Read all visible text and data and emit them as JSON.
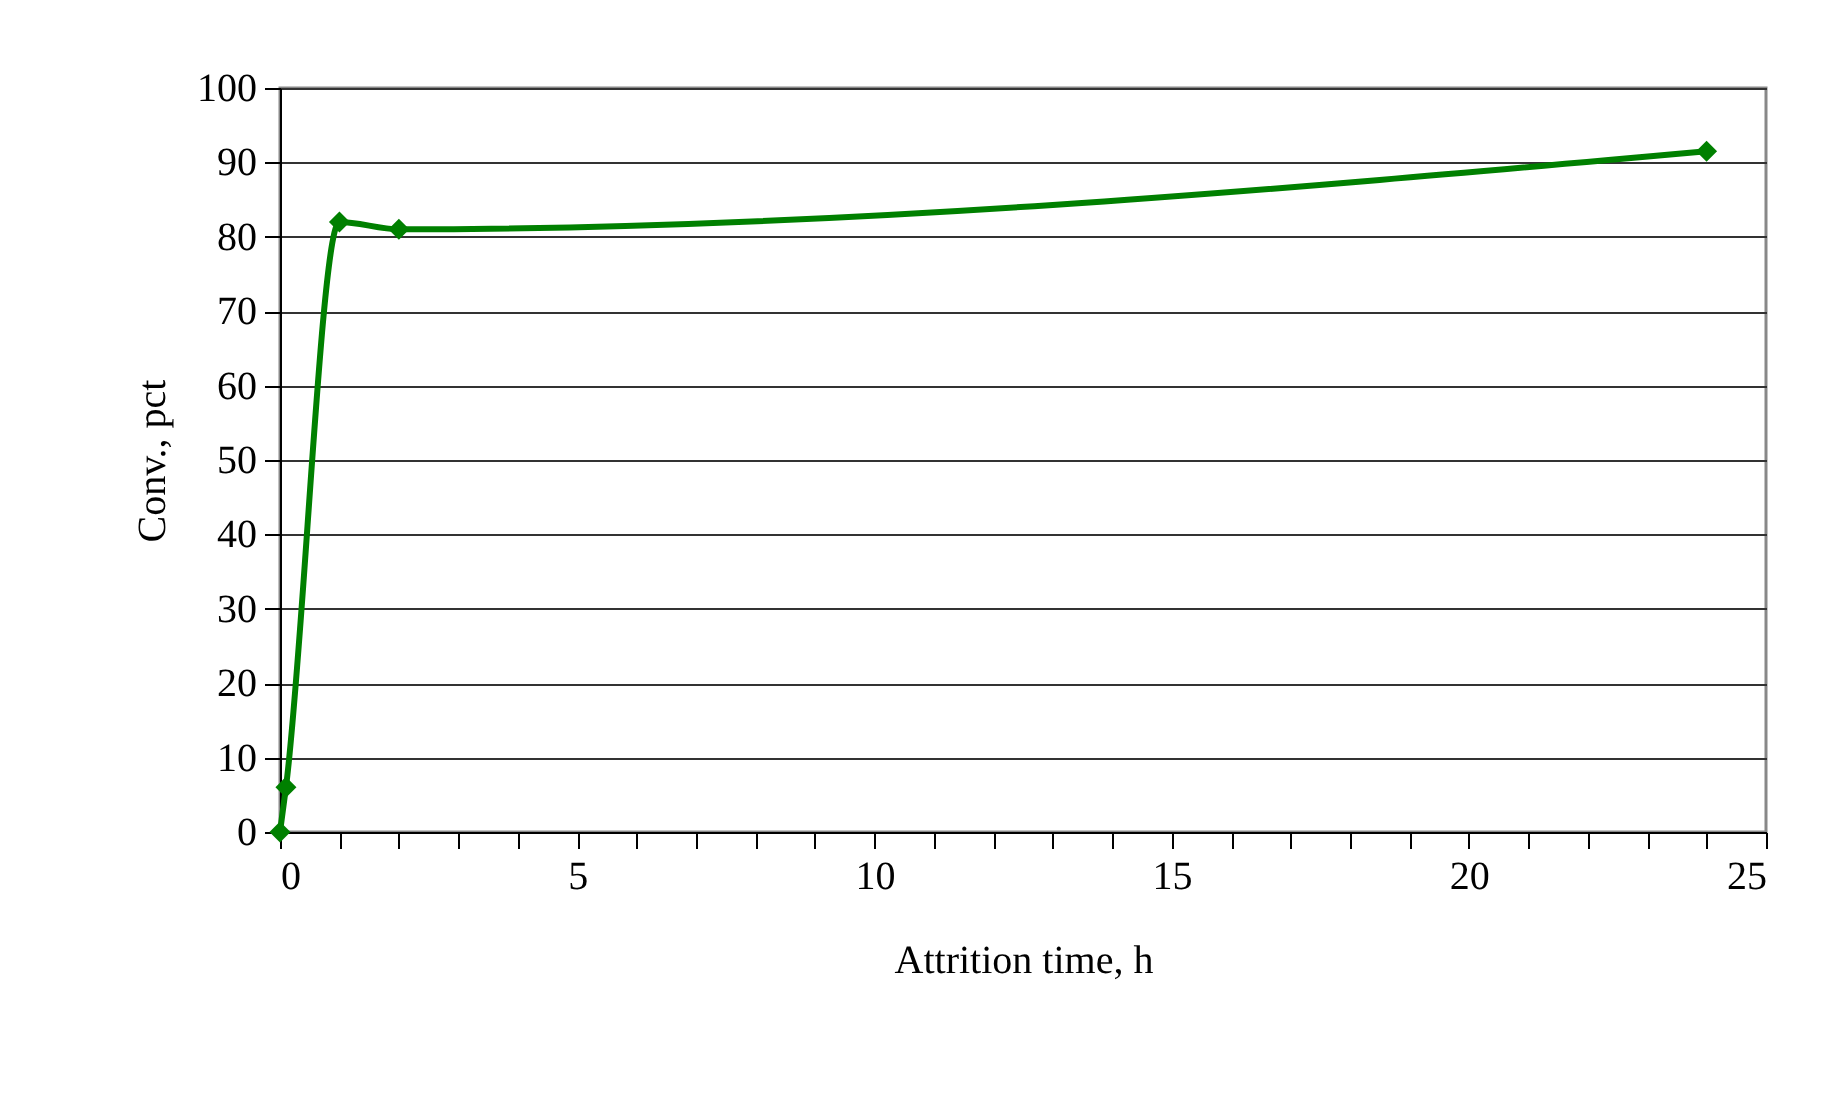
{
  "chart_data": {
    "type": "line",
    "xlabel": "Attrition time, h",
    "ylabel": "Conv., pct",
    "x": [
      0,
      0.1,
      1,
      2,
      24
    ],
    "series": [
      {
        "color": "#008000",
        "values": [
          0,
          6,
          82,
          81,
          91.5
        ]
      }
    ],
    "xlim": [
      0,
      25
    ],
    "ylim": [
      0,
      100
    ],
    "xticks": [
      0,
      {
        "value": 1,
        "label": null
      },
      {
        "value": 2,
        "label": null
      },
      {
        "value": 3,
        "label": null
      },
      {
        "value": 4,
        "label": null
      },
      5,
      {
        "value": 6,
        "label": null
      },
      {
        "value": 7,
        "label": null
      },
      {
        "value": 8,
        "label": null
      },
      {
        "value": 9,
        "label": null
      },
      10,
      {
        "value": 11,
        "label": null
      },
      {
        "value": 12,
        "label": null
      },
      {
        "value": 13,
        "label": null
      },
      {
        "value": 14,
        "label": null
      },
      15,
      {
        "value": 16,
        "label": null
      },
      {
        "value": 17,
        "label": null
      },
      {
        "value": 18,
        "label": null
      },
      {
        "value": 19,
        "label": null
      },
      20,
      {
        "value": 21,
        "label": null
      },
      {
        "value": 22,
        "label": null
      },
      {
        "value": 23,
        "label": null
      },
      {
        "value": 24,
        "label": null
      },
      25
    ],
    "yticks": [
      0,
      10,
      20,
      30,
      40,
      50,
      60,
      70,
      80,
      90,
      100
    ],
    "grid": "y",
    "marker": "diamond",
    "line_style": "solid"
  }
}
